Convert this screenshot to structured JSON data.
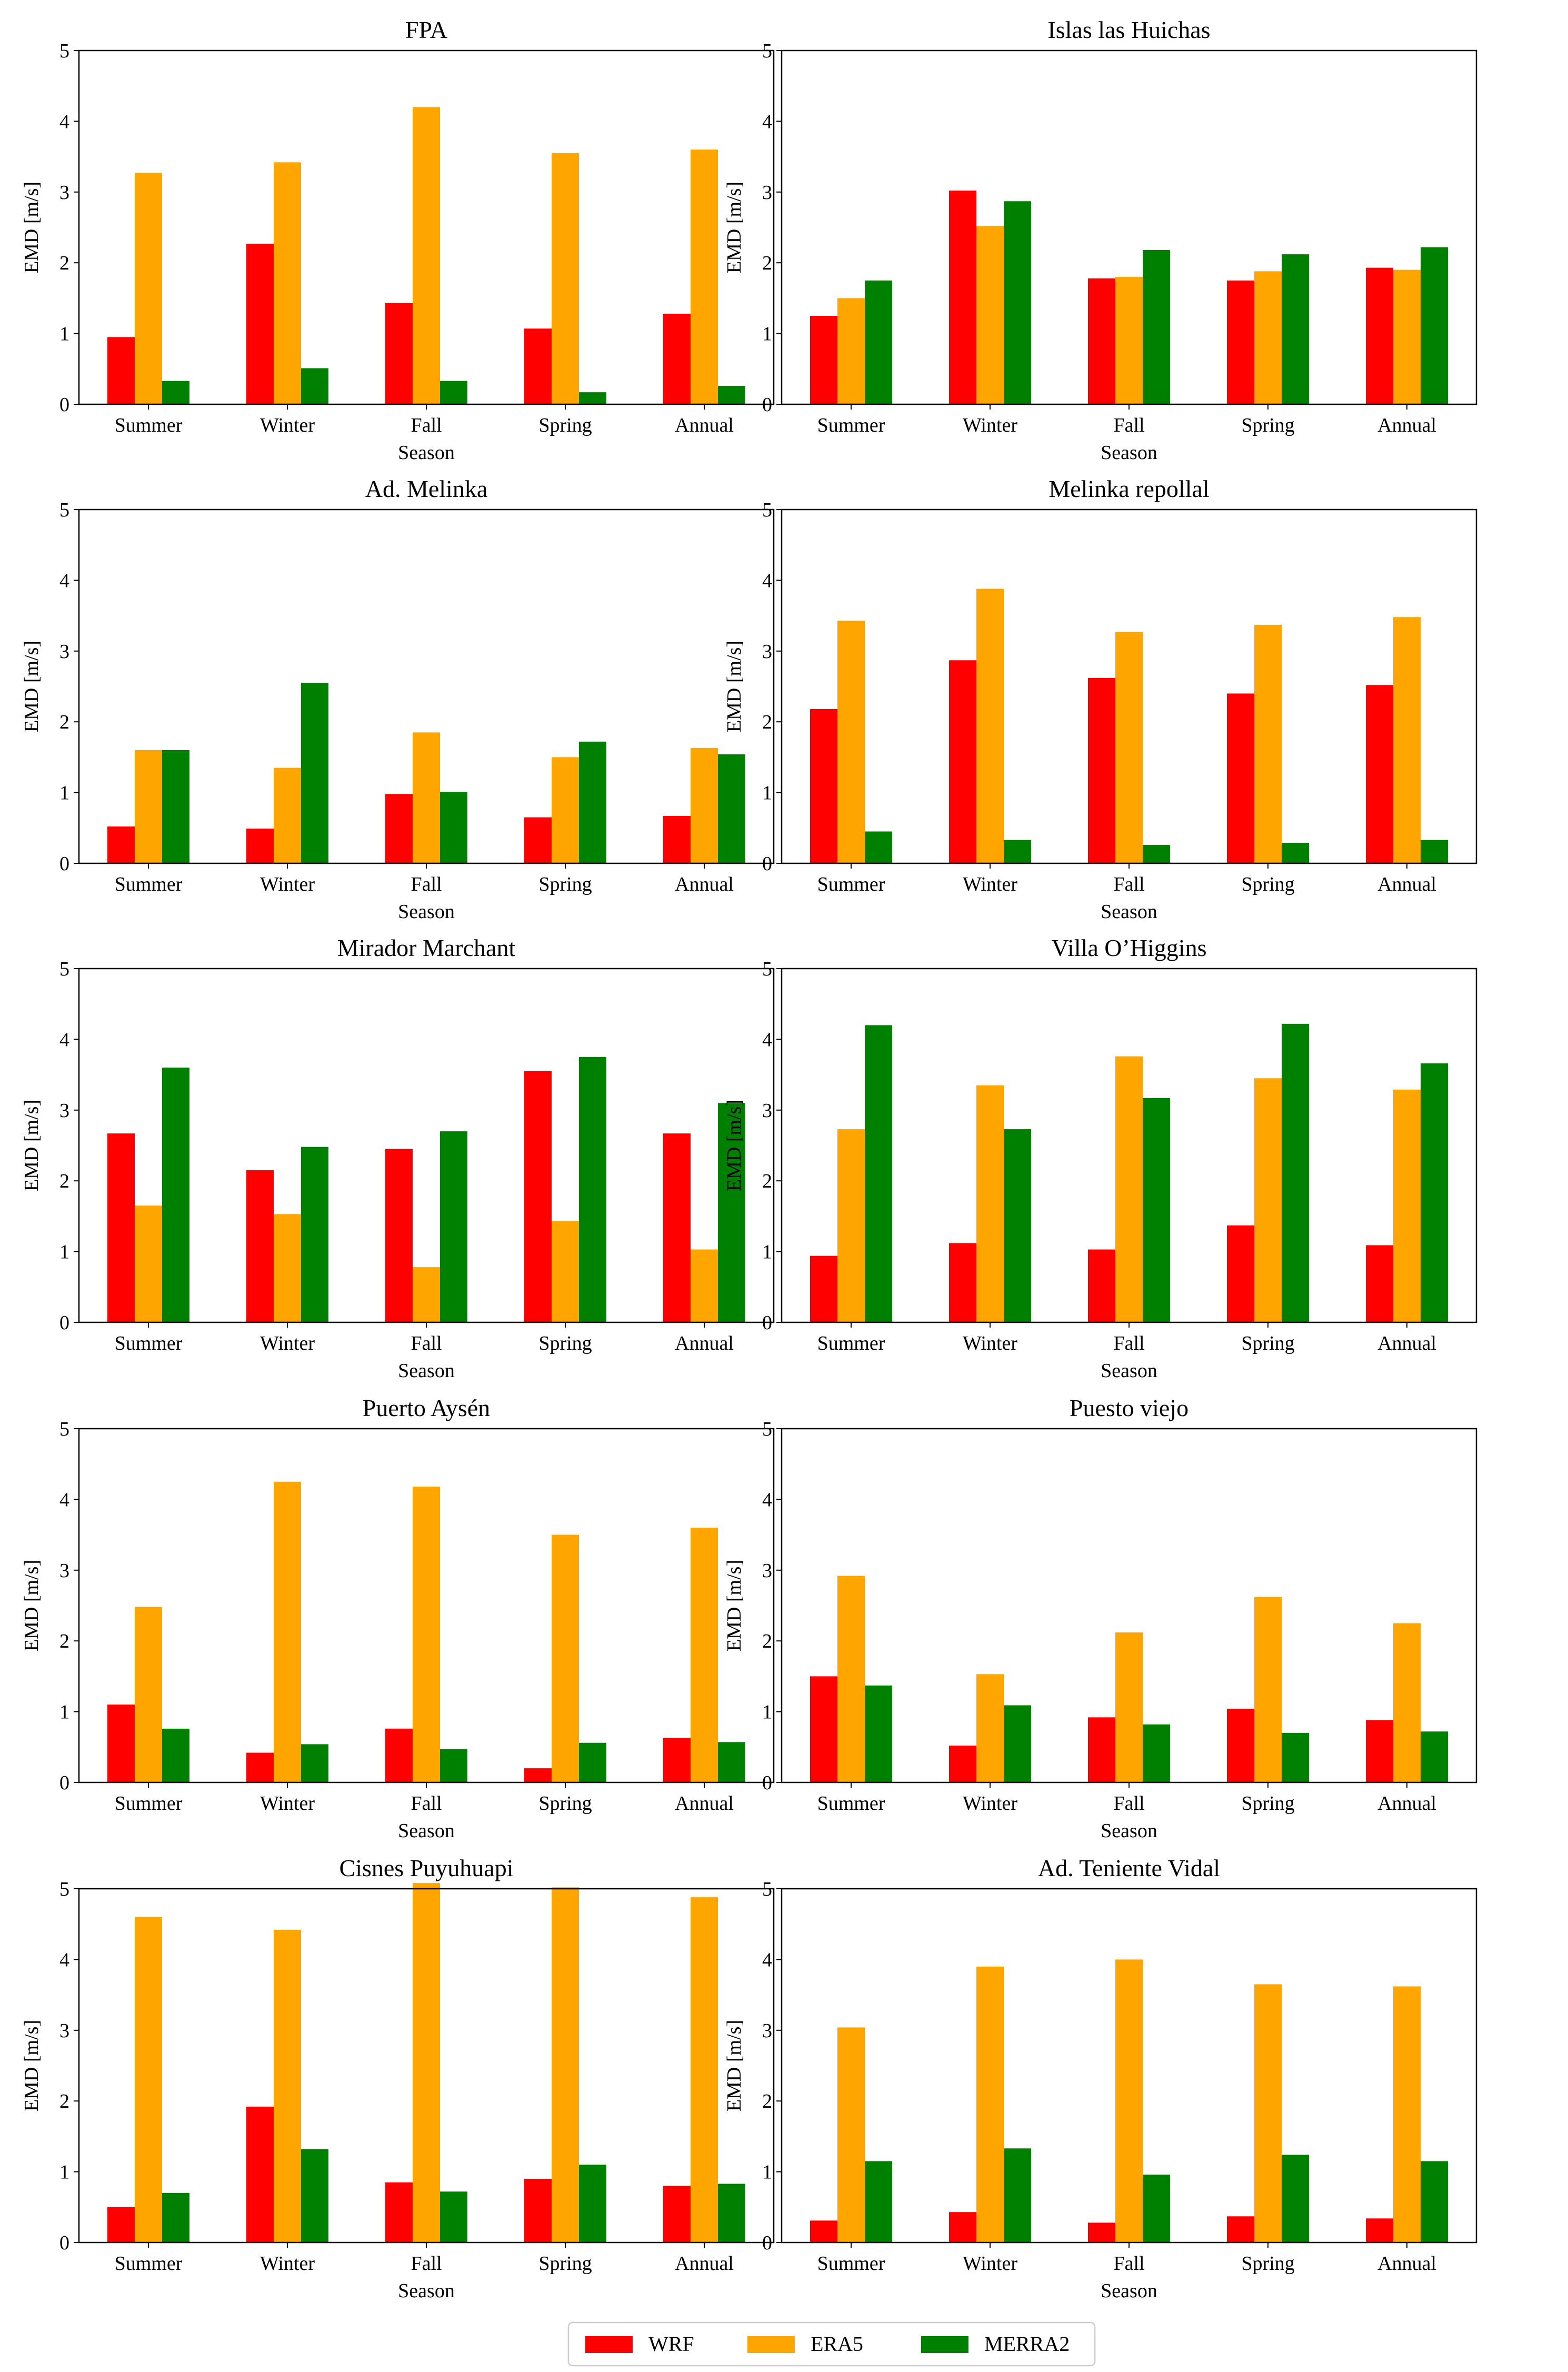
{
  "colors": {
    "WRF": "#ff0000",
    "ERA5": "#ffa500",
    "MERRA2": "#008000"
  },
  "legend": [
    "WRF",
    "ERA5",
    "MERRA2"
  ],
  "chart_data": [
    {
      "type": "bar",
      "title": "FPA",
      "xlabel": "Season",
      "ylabel": "EMD [m/s]",
      "ylim": [
        0,
        5
      ],
      "yticks": [
        "0",
        "1",
        "2",
        "3",
        "4",
        "5"
      ],
      "categories": [
        "Summer",
        "Winter",
        "Fall",
        "Spring",
        "Annual"
      ],
      "series": [
        {
          "name": "WRF",
          "values": [
            0.95,
            2.27,
            1.43,
            1.07,
            1.28
          ]
        },
        {
          "name": "ERA5",
          "values": [
            3.27,
            3.42,
            4.2,
            3.55,
            3.6
          ]
        },
        {
          "name": "MERRA2",
          "values": [
            0.33,
            0.51,
            0.33,
            0.17,
            0.26
          ]
        }
      ]
    },
    {
      "type": "bar",
      "title": "Islas las Huichas",
      "xlabel": "Season",
      "ylabel": "EMD [m/s]",
      "ylim": [
        0,
        5
      ],
      "yticks": [
        "0",
        "1",
        "2",
        "3",
        "4",
        "5"
      ],
      "categories": [
        "Summer",
        "Winter",
        "Fall",
        "Spring",
        "Annual"
      ],
      "series": [
        {
          "name": "WRF",
          "values": [
            1.25,
            3.02,
            1.78,
            1.75,
            1.93
          ]
        },
        {
          "name": "ERA5",
          "values": [
            1.5,
            2.52,
            1.8,
            1.88,
            1.9
          ]
        },
        {
          "name": "MERRA2",
          "values": [
            1.75,
            2.87,
            2.18,
            2.12,
            2.22
          ]
        }
      ]
    },
    {
      "type": "bar",
      "title": "Ad. Melinka",
      "xlabel": "Season",
      "ylabel": "EMD [m/s]",
      "ylim": [
        0,
        5
      ],
      "yticks": [
        "0",
        "1",
        "2",
        "3",
        "4",
        "5"
      ],
      "categories": [
        "Summer",
        "Winter",
        "Fall",
        "Spring",
        "Annual"
      ],
      "series": [
        {
          "name": "WRF",
          "values": [
            0.52,
            0.49,
            0.98,
            0.65,
            0.67
          ]
        },
        {
          "name": "ERA5",
          "values": [
            1.6,
            1.35,
            1.85,
            1.5,
            1.63
          ]
        },
        {
          "name": "MERRA2",
          "values": [
            1.6,
            2.55,
            1.01,
            1.72,
            1.54
          ]
        }
      ]
    },
    {
      "type": "bar",
      "title": "Melinka repollal",
      "xlabel": "Season",
      "ylabel": "EMD [m/s]",
      "ylim": [
        0,
        5
      ],
      "yticks": [
        "0",
        "1",
        "2",
        "3",
        "4",
        "5"
      ],
      "categories": [
        "Summer",
        "Winter",
        "Fall",
        "Spring",
        "Annual"
      ],
      "series": [
        {
          "name": "WRF",
          "values": [
            2.18,
            2.87,
            2.62,
            2.4,
            2.52
          ]
        },
        {
          "name": "ERA5",
          "values": [
            3.43,
            3.88,
            3.27,
            3.37,
            3.48
          ]
        },
        {
          "name": "MERRA2",
          "values": [
            0.45,
            0.33,
            0.26,
            0.29,
            0.33
          ]
        }
      ]
    },
    {
      "type": "bar",
      "title": "Mirador Marchant",
      "xlabel": "Season",
      "ylabel": "EMD [m/s]",
      "ylim": [
        0,
        5
      ],
      "yticks": [
        "0",
        "1",
        "2",
        "3",
        "4",
        "5"
      ],
      "categories": [
        "Summer",
        "Winter",
        "Fall",
        "Spring",
        "Annual"
      ],
      "series": [
        {
          "name": "WRF",
          "values": [
            2.67,
            2.15,
            2.45,
            3.55,
            2.67
          ]
        },
        {
          "name": "ERA5",
          "values": [
            1.65,
            1.53,
            0.78,
            1.43,
            1.03
          ]
        },
        {
          "name": "MERRA2",
          "values": [
            3.6,
            2.48,
            2.7,
            3.75,
            3.1
          ]
        }
      ]
    },
    {
      "type": "bar",
      "title": "Villa O’Higgins",
      "xlabel": "Season",
      "ylabel": "EMD [m/s]",
      "ylim": [
        0,
        5
      ],
      "yticks": [
        "0",
        "1",
        "2",
        "3",
        "4",
        "5"
      ],
      "categories": [
        "Summer",
        "Winter",
        "Fall",
        "Spring",
        "Annual"
      ],
      "series": [
        {
          "name": "WRF",
          "values": [
            0.94,
            1.12,
            1.03,
            1.37,
            1.09
          ]
        },
        {
          "name": "ERA5",
          "values": [
            2.73,
            3.35,
            3.76,
            3.45,
            3.29
          ]
        },
        {
          "name": "MERRA2",
          "values": [
            4.2,
            2.73,
            3.17,
            4.22,
            3.66
          ]
        }
      ]
    },
    {
      "type": "bar",
      "title": "Puerto Aysén",
      "xlabel": "Season",
      "ylabel": "EMD [m/s]",
      "ylim": [
        0,
        5
      ],
      "yticks": [
        "0",
        "1",
        "2",
        "3",
        "4",
        "5"
      ],
      "categories": [
        "Summer",
        "Winter",
        "Fall",
        "Spring",
        "Annual"
      ],
      "series": [
        {
          "name": "WRF",
          "values": [
            1.1,
            0.42,
            0.76,
            0.2,
            0.63
          ]
        },
        {
          "name": "ERA5",
          "values": [
            2.48,
            4.25,
            4.18,
            3.5,
            3.6
          ]
        },
        {
          "name": "MERRA2",
          "values": [
            0.76,
            0.54,
            0.47,
            0.56,
            0.57
          ]
        }
      ]
    },
    {
      "type": "bar",
      "title": "Puesto viejo",
      "xlabel": "Season",
      "ylabel": "EMD [m/s]",
      "ylim": [
        0,
        5
      ],
      "yticks": [
        "0",
        "1",
        "2",
        "3",
        "4",
        "5"
      ],
      "categories": [
        "Summer",
        "Winter",
        "Fall",
        "Spring",
        "Annual"
      ],
      "series": [
        {
          "name": "WRF",
          "values": [
            1.5,
            0.52,
            0.92,
            1.04,
            0.88
          ]
        },
        {
          "name": "ERA5",
          "values": [
            2.92,
            1.53,
            2.12,
            2.62,
            2.25
          ]
        },
        {
          "name": "MERRA2",
          "values": [
            1.37,
            1.09,
            0.82,
            0.7,
            0.72
          ]
        }
      ]
    },
    {
      "type": "bar",
      "title": "Cisnes Puyuhuapi",
      "xlabel": "Season",
      "ylabel": "EMD [m/s]",
      "ylim": [
        0,
        5
      ],
      "yticks": [
        "0",
        "1",
        "2",
        "3",
        "4",
        "5"
      ],
      "categories": [
        "Summer",
        "Winter",
        "Fall",
        "Spring",
        "Annual"
      ],
      "series": [
        {
          "name": "WRF",
          "values": [
            0.5,
            1.92,
            0.85,
            0.9,
            0.8
          ]
        },
        {
          "name": "ERA5",
          "values": [
            4.6,
            4.42,
            5.08,
            5.02,
            4.88
          ]
        },
        {
          "name": "MERRA2",
          "values": [
            0.7,
            1.32,
            0.72,
            1.1,
            0.83
          ]
        }
      ]
    },
    {
      "type": "bar",
      "title": "Ad. Teniente Vidal",
      "xlabel": "Season",
      "ylabel": "EMD [m/s]",
      "ylim": [
        0,
        5
      ],
      "yticks": [
        "0",
        "1",
        "2",
        "3",
        "4",
        "5"
      ],
      "categories": [
        "Summer",
        "Winter",
        "Fall",
        "Spring",
        "Annual"
      ],
      "series": [
        {
          "name": "WRF",
          "values": [
            0.31,
            0.43,
            0.28,
            0.37,
            0.34
          ]
        },
        {
          "name": "ERA5",
          "values": [
            3.04,
            3.9,
            4.0,
            3.65,
            3.62
          ]
        },
        {
          "name": "MERRA2",
          "values": [
            1.15,
            1.33,
            0.96,
            1.24,
            1.15
          ]
        }
      ]
    }
  ]
}
